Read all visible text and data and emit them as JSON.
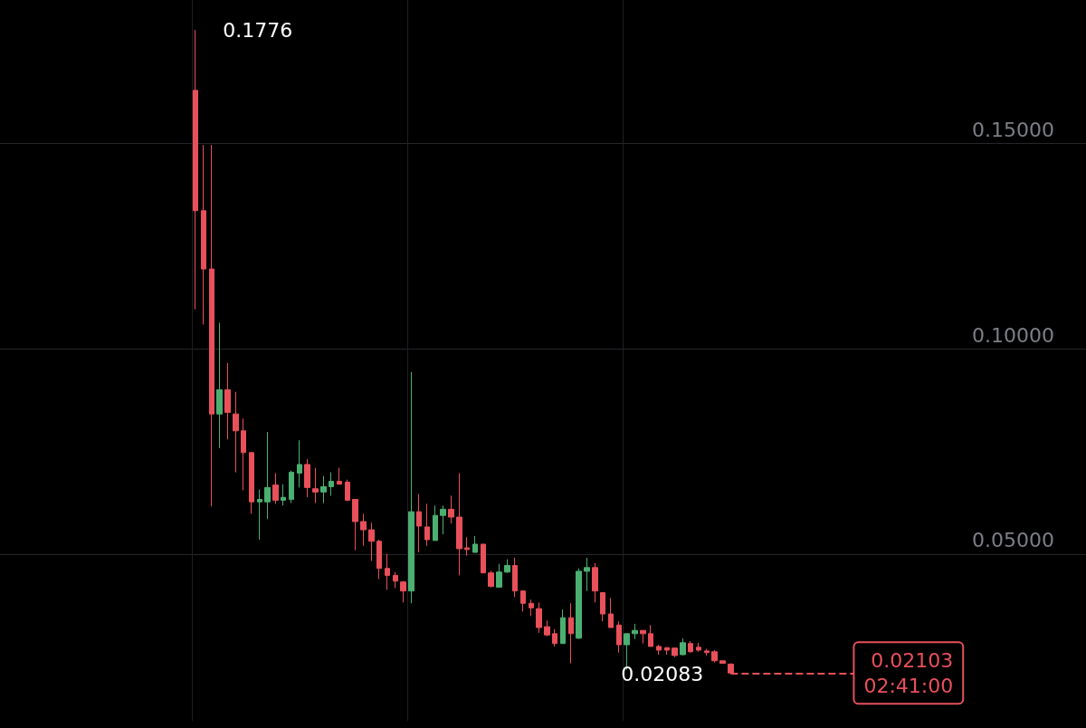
{
  "chart_data": {
    "type": "candlestick",
    "categories": [
      null,
      null,
      null,
      null,
      null,
      null,
      null,
      null,
      null,
      null,
      null,
      null,
      null,
      null,
      null,
      null,
      null,
      null,
      null,
      null,
      null,
      null,
      null,
      null,
      null,
      null,
      null,
      null,
      null,
      null,
      null,
      null,
      null,
      null,
      null,
      null,
      null,
      null,
      null,
      null,
      null,
      null,
      null,
      null,
      null,
      null,
      null,
      null,
      null,
      null,
      null,
      null,
      null,
      null,
      null,
      null,
      null,
      null,
      null,
      null,
      null,
      null,
      null,
      null,
      null,
      null,
      null,
      null,
      null,
      null,
      null,
      null,
      null,
      null,
      null,
      null,
      null,
      null,
      null,
      null,
      null,
      null,
      null,
      null,
      null,
      null,
      null,
      null,
      null,
      null,
      null,
      null,
      null,
      null,
      null,
      null,
      null,
      null,
      null,
      null,
      null,
      null,
      null,
      null,
      null,
      null,
      null,
      null,
      null,
      null,
      null,
      null,
      null,
      null,
      null,
      null,
      null,
      null,
      null,
      null,
      null,
      null,
      null,
      null,
      null,
      null,
      null,
      null,
      null,
      null,
      null,
      null,
      null,
      null,
      null,
      null
    ],
    "ohlc": [
      null,
      null,
      null,
      null,
      null,
      null,
      null,
      null,
      null,
      null,
      null,
      null,
      null,
      null,
      null,
      null,
      null,
      null,
      null,
      null,
      null,
      null,
      null,
      null,
      [
        0.1629,
        0.1776,
        0.1096,
        0.1336
      ],
      [
        0.1336,
        0.1496,
        0.1059,
        0.1194
      ],
      [
        0.1194,
        0.1496,
        0.0616,
        0.0841
      ],
      [
        0.0841,
        0.1063,
        0.0758,
        0.09
      ],
      [
        0.09,
        0.0965,
        0.0779,
        0.0845
      ],
      [
        0.0841,
        0.0895,
        0.0699,
        0.08
      ],
      [
        0.08,
        0.083,
        0.0655,
        0.0747
      ],
      [
        0.0747,
        0.0747,
        0.0598,
        0.0627
      ],
      [
        0.0627,
        0.0657,
        0.0535,
        0.0633
      ],
      [
        0.0627,
        0.0797,
        0.0585,
        0.0662
      ],
      [
        0.0668,
        0.0697,
        0.0622,
        0.0631
      ],
      [
        0.0631,
        0.067,
        0.0618,
        0.0638
      ],
      [
        0.0633,
        0.0703,
        0.0624,
        0.0699
      ],
      [
        0.0697,
        0.0777,
        0.0662,
        0.0718
      ],
      [
        0.0718,
        0.0731,
        0.0638,
        0.0662
      ],
      [
        0.0659,
        0.071,
        0.0624,
        0.0651
      ],
      [
        0.0651,
        0.069,
        0.0624,
        0.0664
      ],
      [
        0.0664,
        0.0699,
        0.0642,
        0.0677
      ],
      [
        0.0677,
        0.071,
        0.067,
        0.067
      ],
      [
        0.0675,
        0.0681,
        0.0629,
        0.0631
      ],
      [
        0.0633,
        0.0633,
        0.0509,
        0.0579
      ],
      [
        0.0579,
        0.0598,
        0.052,
        0.0559
      ],
      [
        0.0559,
        0.0576,
        0.0483,
        0.0531
      ],
      [
        0.0531,
        0.0535,
        0.0439,
        0.0465
      ],
      [
        0.0465,
        0.05,
        0.0413,
        0.0448
      ],
      [
        0.0448,
        0.0456,
        0.0417,
        0.0434
      ],
      [
        0.0432,
        0.0434,
        0.0382,
        0.041
      ],
      [
        0.041,
        0.0943,
        0.038,
        0.0603
      ],
      [
        0.0603,
        0.0646,
        0.0504,
        0.0568
      ],
      [
        0.0566,
        0.0622,
        0.052,
        0.0535
      ],
      [
        0.0533,
        0.0618,
        0.0533,
        0.0594
      ],
      [
        0.0594,
        0.0618,
        0.0548,
        0.0609
      ],
      [
        0.0609,
        0.0642,
        0.0574,
        0.059
      ],
      [
        0.059,
        0.0697,
        0.0448,
        0.0513
      ],
      [
        0.0515,
        0.0541,
        0.0496,
        0.0511
      ],
      [
        0.0504,
        0.0544,
        0.0504,
        0.0524
      ],
      [
        0.0524,
        0.0524,
        0.0454,
        0.0454
      ],
      [
        0.0454,
        0.0459,
        0.0419,
        0.0421
      ],
      [
        0.0419,
        0.0476,
        0.0419,
        0.0456
      ],
      [
        0.0456,
        0.0487,
        0.0454,
        0.0472
      ],
      [
        0.0472,
        0.0491,
        0.0395,
        0.041
      ],
      [
        0.041,
        0.0412,
        0.036,
        0.038
      ],
      [
        0.038,
        0.0389,
        0.0349,
        0.0369
      ],
      [
        0.0367,
        0.0382,
        0.0308,
        0.0321
      ],
      [
        0.0323,
        0.0338,
        0.03,
        0.0303
      ],
      [
        0.0306,
        0.0317,
        0.0275,
        0.0282
      ],
      [
        0.0282,
        0.0365,
        0.0282,
        0.0345
      ],
      [
        0.0345,
        0.038,
        0.0234,
        0.0306
      ],
      [
        0.0295,
        0.0465,
        0.0293,
        0.0458
      ],
      [
        0.0458,
        0.0491,
        0.041,
        0.0467
      ],
      [
        0.0467,
        0.0478,
        0.0382,
        0.041
      ],
      [
        0.0406,
        0.0406,
        0.0336,
        0.0354
      ],
      [
        0.0354,
        0.0393,
        0.0321,
        0.0321
      ],
      [
        0.0327,
        0.0336,
        0.026,
        0.0279
      ],
      [
        0.0279,
        0.0306,
        0.0218,
        0.0306
      ],
      [
        0.0306,
        0.033,
        0.0293,
        0.0314
      ],
      [
        0.0314,
        0.0314,
        0.0282,
        0.0306
      ],
      [
        0.0306,
        0.0327,
        0.0275,
        0.0275
      ],
      [
        0.0275,
        0.0279,
        0.0255,
        0.0266
      ],
      [
        0.0272,
        0.0273,
        0.0255,
        0.0266
      ],
      [
        0.0271,
        0.0271,
        0.0249,
        0.0253
      ],
      [
        0.0255,
        0.0295,
        0.0253,
        0.0284
      ],
      [
        0.0282,
        0.0288,
        0.026,
        0.0262
      ],
      [
        0.0273,
        0.0284,
        0.0262,
        0.0266
      ],
      [
        0.0264,
        0.0269,
        0.0253,
        0.026
      ],
      [
        0.0262,
        0.0266,
        0.0236,
        0.024
      ],
      [
        0.024,
        0.024,
        0.0234,
        0.0234
      ],
      [
        0.0232,
        0.0234,
        0.02083,
        0.02103
      ],
      null,
      null,
      null,
      null,
      null,
      null,
      null,
      null,
      null,
      null,
      null,
      null,
      null,
      null,
      null,
      null,
      null,
      null,
      null,
      null,
      null,
      null,
      null,
      null,
      null,
      null,
      null,
      null,
      null,
      null,
      null,
      null,
      null,
      null,
      null,
      null,
      null,
      null,
      null,
      null,
      null,
      null,
      null,
      null
    ],
    "colors": [
      null,
      null,
      null,
      null,
      null,
      null,
      null,
      null,
      null,
      null,
      null,
      null,
      null,
      null,
      null,
      null,
      null,
      null,
      null,
      null,
      null,
      null,
      null,
      null,
      "#e8505b",
      "#e8505b",
      "#e8505b",
      "#4caf72",
      "#e8505b",
      "#e8505b",
      "#e8505b",
      "#e8505b",
      "#4caf72",
      "#4caf72",
      "#e8505b",
      "#4caf72",
      "#4caf72",
      "#4caf72",
      "#e8505b",
      "#e8505b",
      "#4caf72",
      "#4caf72",
      "#e8505b",
      "#e8505b",
      "#e8505b",
      "#e8505b",
      "#e8505b",
      "#e8505b",
      "#e8505b",
      "#e8505b",
      "#e8505b",
      "#4caf72",
      "#e8505b",
      "#e8505b",
      "#4caf72",
      "#4caf72",
      "#e8505b",
      "#e8505b",
      "#e8505b",
      "#4caf72",
      "#e8505b",
      "#e8505b",
      "#4caf72",
      "#4caf72",
      "#e8505b",
      "#e8505b",
      "#e8505b",
      "#e8505b",
      "#e8505b",
      "#e8505b",
      "#4caf72",
      "#e8505b",
      "#4caf72",
      "#4caf72",
      "#e8505b",
      "#e8505b",
      "#e8505b",
      "#e8505b",
      "#4caf72",
      "#4caf72",
      "#e8505b",
      "#e8505b",
      "#e8505b",
      "#e8505b",
      "#e8505b",
      "#4caf72",
      "#e8505b",
      "#e8505b",
      "#e8505b",
      "#e8505b",
      "#e8505b",
      "#e8505b",
      null,
      null,
      null,
      null,
      null,
      null,
      null,
      null,
      null,
      null,
      null,
      null,
      null,
      null,
      null,
      null,
      null,
      null,
      null,
      null,
      null,
      null,
      null,
      null,
      null,
      null,
      null,
      null,
      null,
      null,
      null,
      null,
      null,
      null,
      null,
      null,
      null,
      null,
      null,
      null,
      null,
      null,
      null,
      null
    ],
    "ylim": [
      0.0094,
      0.1849
    ],
    "yticks": [
      {
        "value": 0.05,
        "label": "0.05000"
      },
      {
        "value": 0.1,
        "label": "0.10000"
      },
      {
        "value": 0.15,
        "label": "0.15000"
      }
    ],
    "grid": true,
    "ref_lines": [
      {
        "axis": "y",
        "value": 0.02103,
        "label": "0.02103\n02:41:00",
        "color": "#e8505b",
        "line_style": "dashed"
      }
    ],
    "annotations": [
      "0.1776",
      "0.02083"
    ]
  }
}
